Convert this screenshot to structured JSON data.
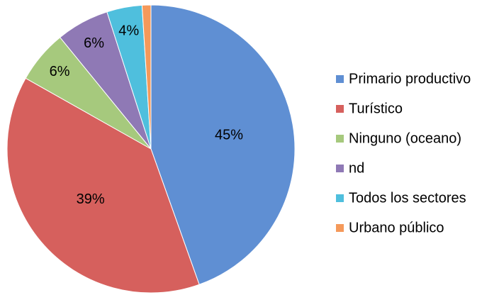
{
  "chart_data": {
    "type": "pie",
    "categories": [
      "Primario productivo",
      "Turístico",
      "Ninguno (oceano)",
      "nd",
      "Todos los sectores",
      "Urbano público"
    ],
    "values": [
      45,
      39,
      6,
      6,
      4,
      1
    ],
    "value_labels": [
      "45%",
      "39%",
      "6%",
      "6%",
      "4%",
      null
    ],
    "colors": [
      "#5f8fd3",
      "#d6605d",
      "#a6c97d",
      "#8f79b5",
      "#4fbfdd",
      "#f5995a"
    ],
    "legend": "right"
  }
}
